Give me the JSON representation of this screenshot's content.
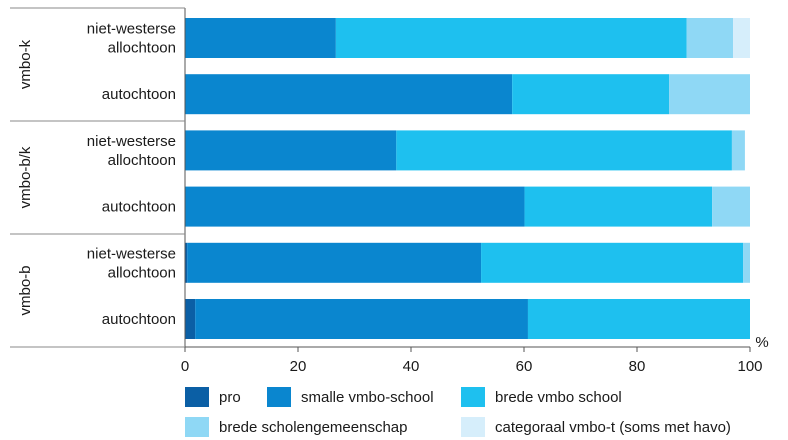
{
  "chart_data": {
    "type": "bar",
    "orientation": "horizontal",
    "stacked": true,
    "percent_unit": "%",
    "xlim": [
      0,
      100
    ],
    "x_ticks": [
      "0",
      "20",
      "40",
      "60",
      "80",
      "100"
    ],
    "groups": [
      {
        "name": "vmbo-k",
        "rows": [
          0,
          1
        ]
      },
      {
        "name": "vmbo-b/k",
        "rows": [
          2,
          3
        ]
      },
      {
        "name": "vmbo-b",
        "rows": [
          4,
          5
        ]
      }
    ],
    "categories": [
      [
        "niet-westerse",
        "allochtoon"
      ],
      [
        "autochtoon"
      ],
      [
        "niet-westerse",
        "allochtoon"
      ],
      [
        "autochtoon"
      ],
      [
        "niet-westerse",
        "allochtoon"
      ],
      [
        "autochtoon"
      ]
    ],
    "series": [
      {
        "name": "pro",
        "color": "#0b5fa5",
        "values": [
          0,
          0,
          0,
          0,
          0.4,
          1.8
        ]
      },
      {
        "name": "smalle vmbo-school",
        "color": "#0a86cf",
        "values": [
          26.7,
          57.9,
          37.4,
          60.1,
          52.0,
          58.9
        ]
      },
      {
        "name": "brede vmbo school",
        "color": "#1ec0ef",
        "values": [
          62.1,
          27.8,
          59.4,
          33.2,
          46.4,
          39.3
        ]
      },
      {
        "name": "brede scholengemeenschap",
        "color": "#8fd8f5",
        "values": [
          8.2,
          14.3,
          2.3,
          6.7,
          1.2,
          0
        ]
      },
      {
        "name": "categoraal vmbo-t (soms met havo)",
        "color": "#d6eefb",
        "values": [
          3.0,
          0,
          0,
          0,
          0,
          0
        ]
      }
    ]
  }
}
